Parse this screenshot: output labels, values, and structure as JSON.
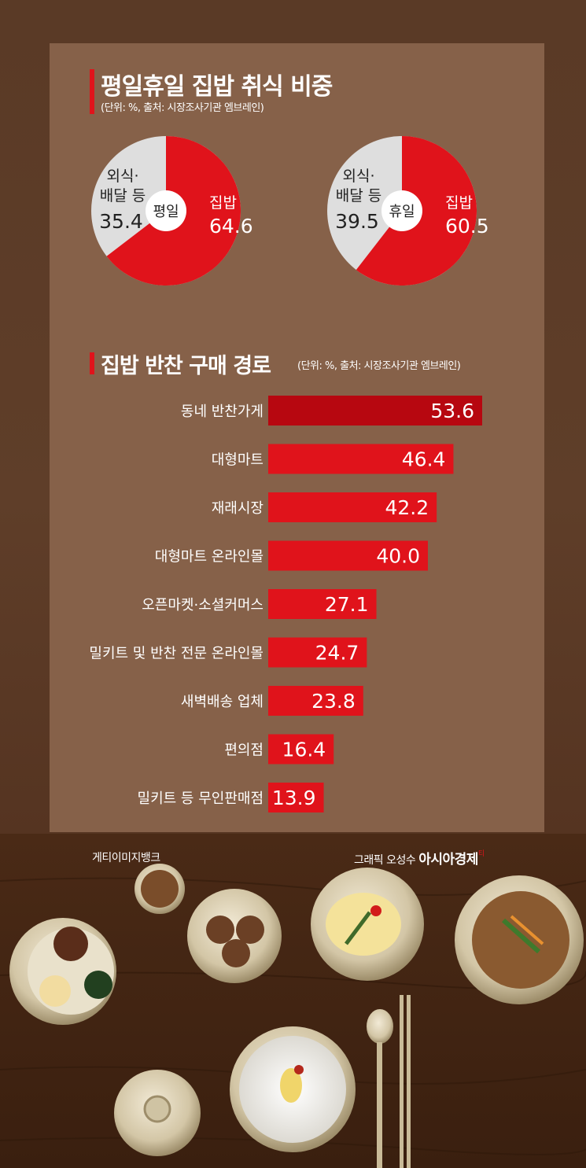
{
  "section1": {
    "title": "평일휴일 집밥 취식 비중",
    "subtitle": "(단위: %, 출처: 시장조사기관 엠브레인)"
  },
  "section2": {
    "title": "집밥 반찬 구매 경로",
    "subtitle": "(단위: %, 출처: 시장조사기관 엠브레인)"
  },
  "colors": {
    "accent": "#e0131b",
    "accent_dark": "#b70710",
    "pie_gray": "#dedede",
    "panel": "#866149"
  },
  "chart_data": [
    {
      "type": "pie",
      "center_label": "평일",
      "slices": [
        {
          "label_line1": "집밥",
          "label_line2": "",
          "value": 64.6,
          "display": "64.6"
        },
        {
          "label_line1": "외식·",
          "label_line2": "배달 등",
          "value": 35.4,
          "display": "35.4"
        }
      ]
    },
    {
      "type": "pie",
      "center_label": "휴일",
      "slices": [
        {
          "label_line1": "집밥",
          "label_line2": "",
          "value": 60.5,
          "display": "60.5"
        },
        {
          "label_line1": "외식·",
          "label_line2": "배달 등",
          "value": 39.5,
          "display": "39.5"
        }
      ]
    },
    {
      "type": "bar",
      "orientation": "horizontal",
      "categories": [
        "동네 반찬가게",
        "대형마트",
        "재래시장",
        "대형마트 온라인몰",
        "오픈마켓·소셜커머스",
        "밀키트 및 반찬 전문 온라인몰",
        "새벽배송 업체",
        "편의점",
        "밀키트 등 무인판매점"
      ],
      "values": [
        53.6,
        46.4,
        42.2,
        40.0,
        27.1,
        24.7,
        23.8,
        16.4,
        13.9
      ],
      "labels": [
        "53.6",
        "46.4",
        "42.2",
        "40.0",
        "27.1",
        "24.7",
        "23.8",
        "16.4",
        "13.9"
      ],
      "xlim": [
        0,
        53.6
      ]
    }
  ],
  "credits": {
    "photo": "게티이미지뱅크",
    "graphic": "그래픽 오성수",
    "brand": "아시아경제",
    "brand_mark": "티"
  }
}
